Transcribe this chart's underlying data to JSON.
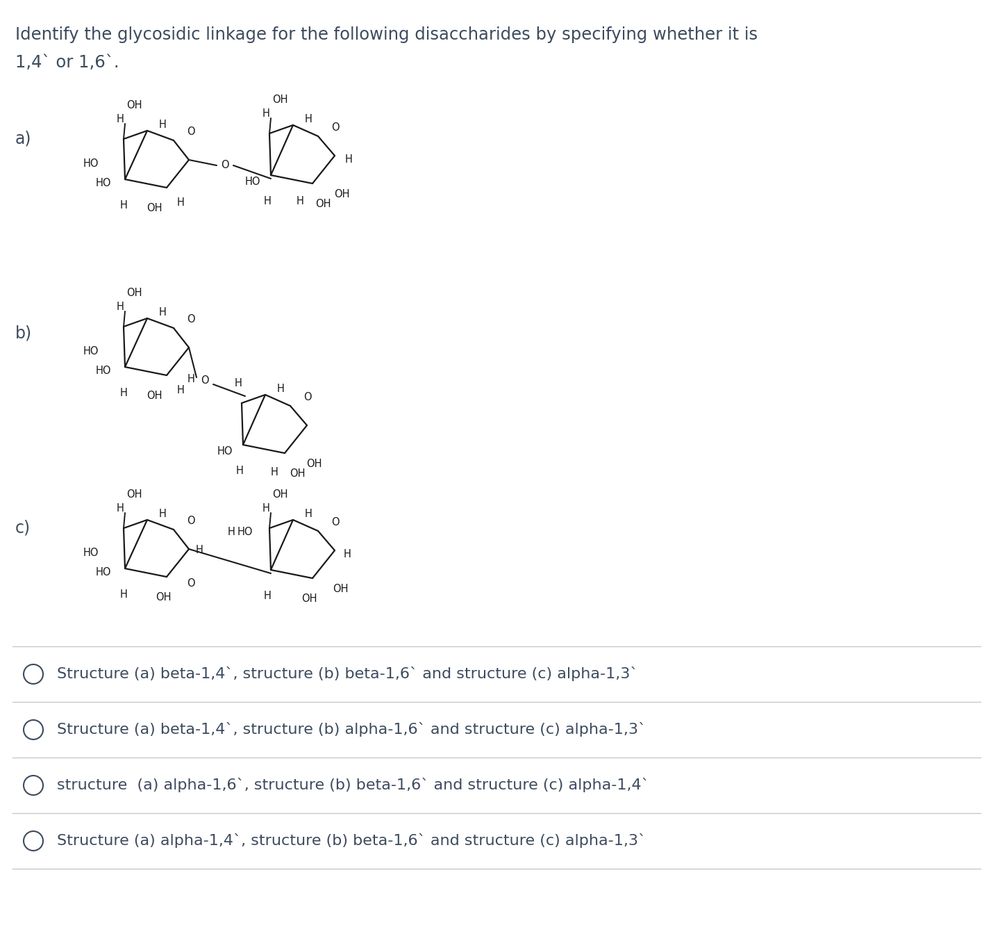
{
  "title_line1": "Identify the glycosidic linkage for the following disaccharides by specifying whether it is",
  "title_line2": "1,4` or 1,6`.",
  "label_a": "a)",
  "label_b": "b)",
  "label_c": "c)",
  "options": [
    "Structure (a) beta-1,4`, structure (b) beta-1,6` and structure (c) alpha-1,3`",
    "Structure (a) beta-1,4`, structure (b) alpha-1,6` and structure (c) alpha-1,3`",
    "structure  (a) alpha-1,6`, structure (b) beta-1,6` and structure (c) alpha-1,4`",
    "Structure (a) alpha-1,4`, structure (b) beta-1,6` and structure (c) alpha-1,3`"
  ],
  "bg_color": "#ffffff",
  "text_color": "#3d4b5e",
  "mol_color": "#1a1a1a",
  "line_color": "#c8c8c8",
  "title_fontsize": 17.5,
  "label_fontsize": 17,
  "option_fontsize": 16,
  "mol_fontsize": 10.5
}
